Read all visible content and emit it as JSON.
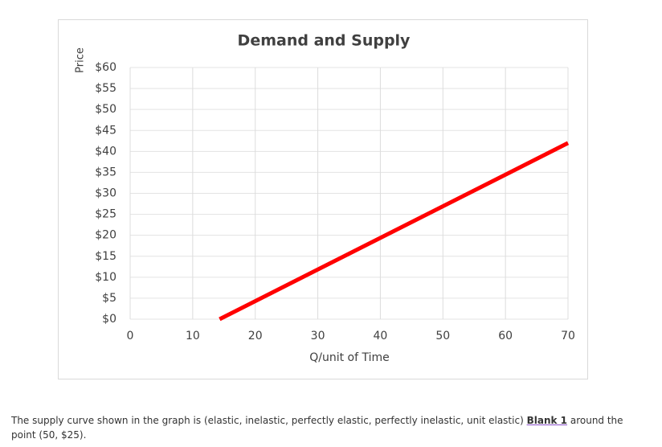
{
  "chart_data": {
    "type": "line",
    "title": "Demand and Supply",
    "x_label": "Q/unit of Time",
    "y_label": "Price",
    "x": [
      14.3,
      70
    ],
    "values": [
      0,
      42
    ],
    "color": "#ff0000",
    "xlim": [
      0,
      70
    ],
    "xticks": [
      0,
      10,
      20,
      30,
      40,
      50,
      60,
      70
    ],
    "ylim": [
      0,
      60
    ],
    "yticks": [
      {
        "value": 0,
        "label": "$0"
      },
      {
        "value": 5,
        "label": "$5"
      },
      {
        "value": 10,
        "label": "$10"
      },
      {
        "value": 15,
        "label": "$15"
      },
      {
        "value": 20,
        "label": "$20"
      },
      {
        "value": 25,
        "label": "$25"
      },
      {
        "value": 30,
        "label": "$30"
      },
      {
        "value": 35,
        "label": "$35"
      },
      {
        "value": 40,
        "label": "$40"
      },
      {
        "value": 45,
        "label": "$45"
      },
      {
        "value": 50,
        "label": "$50"
      },
      {
        "value": 55,
        "label": "$55"
      },
      {
        "value": 60,
        "label": "$60"
      }
    ],
    "grid": true
  },
  "question": {
    "before": "The supply curve shown in the graph is (elastic, inelastic, perfectly elastic, perfectly inelastic, unit elastic)",
    "blank": "Blank 1",
    "after": "around the point (50, $25)."
  }
}
